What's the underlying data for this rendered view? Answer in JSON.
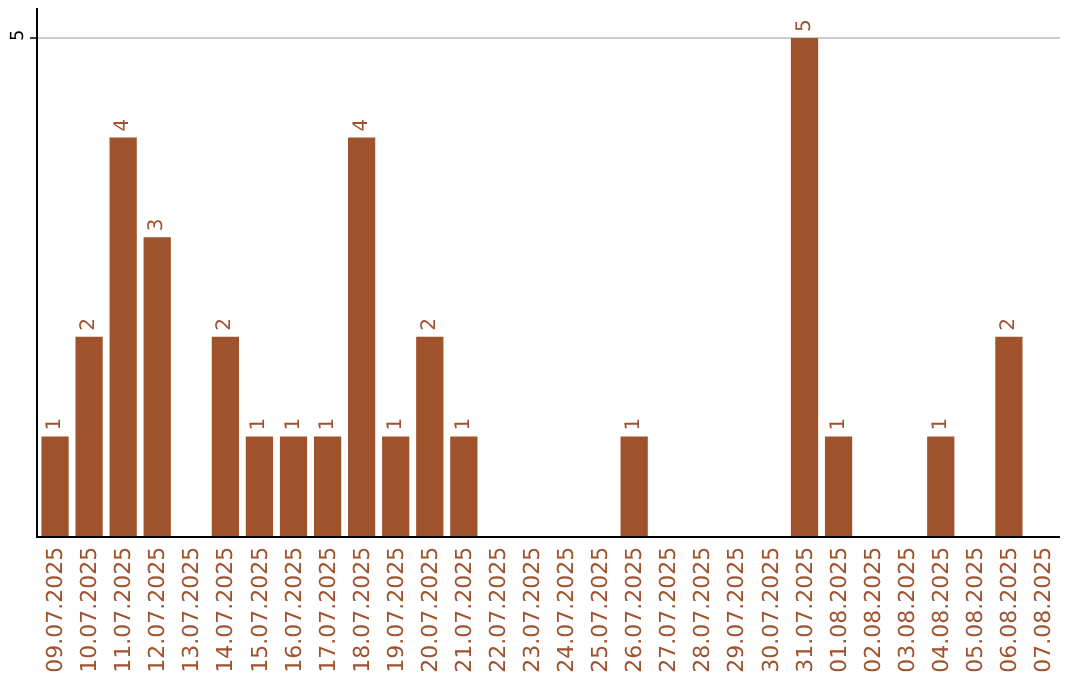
{
  "chart_data": {
    "type": "bar",
    "categories": [
      "09.07.2025",
      "10.07.2025",
      "11.07.2025",
      "12.07.2025",
      "13.07.2025",
      "14.07.2025",
      "15.07.2025",
      "16.07.2025",
      "17.07.2025",
      "18.07.2025",
      "19.07.2025",
      "20.07.2025",
      "21.07.2025",
      "22.07.2025",
      "23.07.2025",
      "24.07.2025",
      "25.07.2025",
      "26.07.2025",
      "27.07.2025",
      "28.07.2025",
      "29.07.2025",
      "30.07.2025",
      "31.07.2025",
      "01.08.2025",
      "02.08.2025",
      "03.08.2025",
      "04.08.2025",
      "05.08.2025",
      "06.08.2025",
      "07.08.2025"
    ],
    "values": [
      1,
      2,
      4,
      3,
      0,
      2,
      1,
      1,
      1,
      4,
      1,
      2,
      1,
      0,
      0,
      0,
      0,
      1,
      0,
      0,
      0,
      0,
      5,
      1,
      0,
      0,
      1,
      0,
      2,
      0
    ],
    "value_labels": [
      "1",
      "2",
      "4",
      "3",
      null,
      "2",
      "1",
      "1",
      "1",
      "4",
      "1",
      "2",
      "1",
      null,
      null,
      null,
      null,
      "1",
      null,
      null,
      null,
      null,
      "5",
      "1",
      null,
      null,
      "1",
      null,
      "2",
      null
    ],
    "color": "#a0522d",
    "ylim": [
      0,
      5.3
    ],
    "yticks": [
      5
    ],
    "grid": "y",
    "legend": false
  }
}
